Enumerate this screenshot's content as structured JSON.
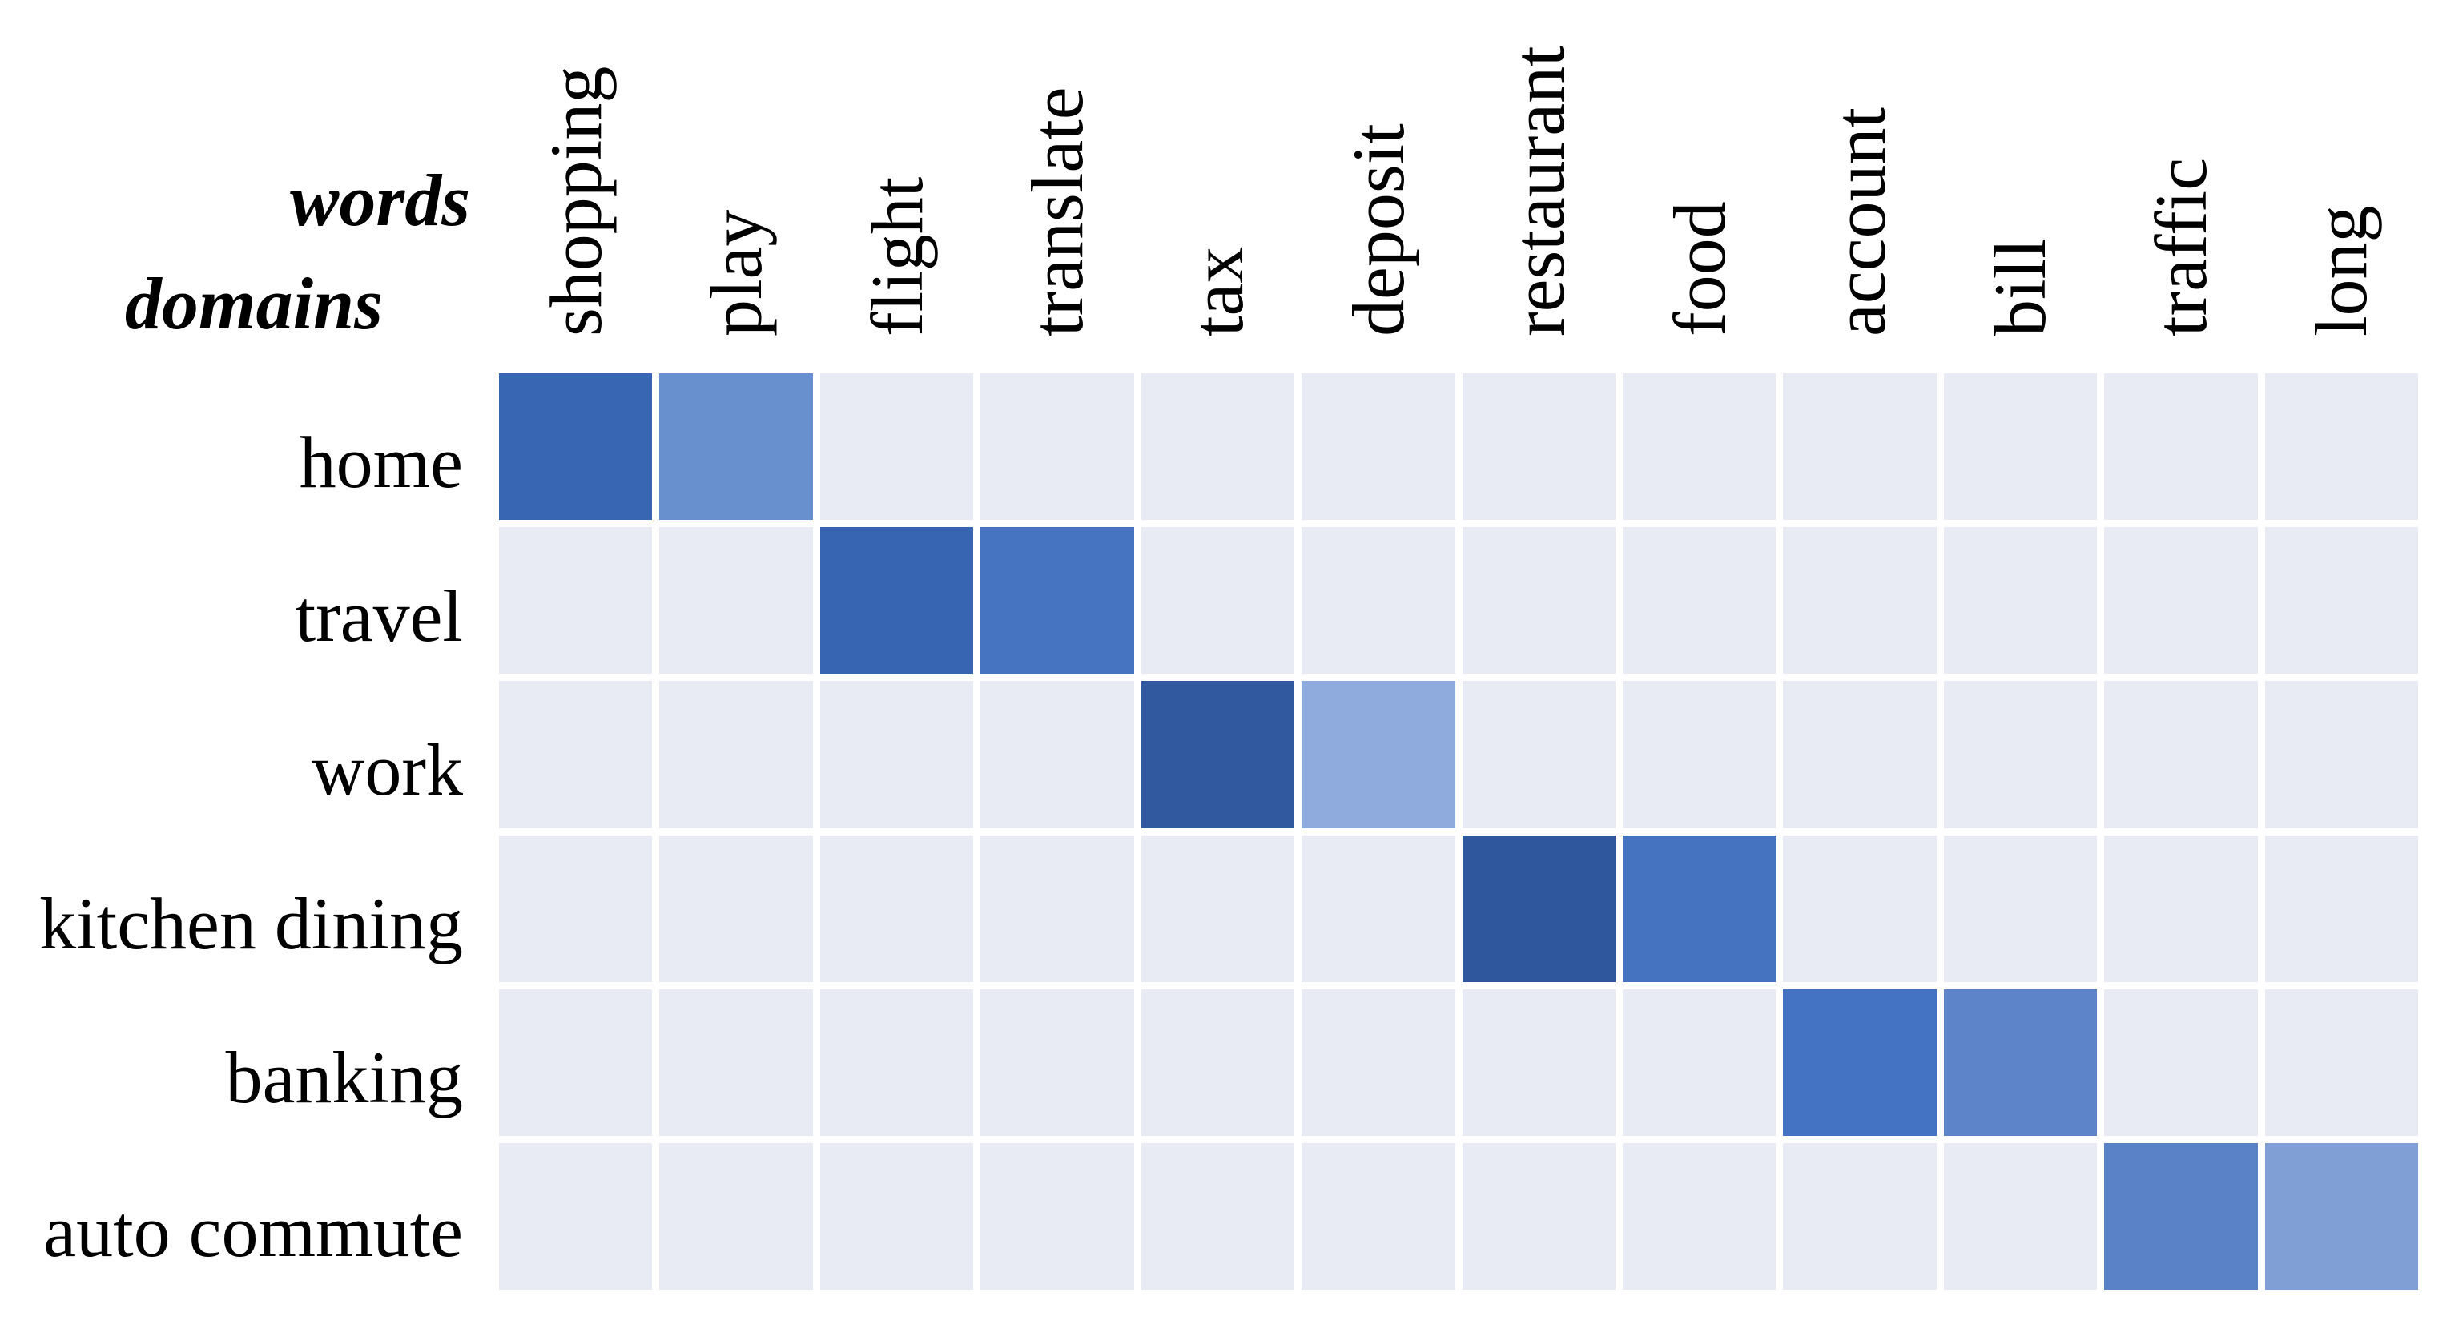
{
  "figure": {
    "corner": {
      "words_label": "words",
      "domains_label": "domains"
    }
  },
  "chart_data": {
    "type": "heatmap",
    "title": "",
    "x_axis_label": "words",
    "y_axis_label": "domains",
    "columns": [
      "shopping",
      "play",
      "flight",
      "translate",
      "tax",
      "deposit",
      "restaurant",
      "food",
      "account",
      "bill",
      "traffic",
      "long"
    ],
    "rows": [
      "home",
      "travel",
      "work",
      "kitchen dining",
      "banking",
      "auto commute"
    ],
    "values": [
      [
        0.72,
        0.45,
        0.04,
        0.04,
        0.04,
        0.04,
        0.04,
        0.04,
        0.04,
        0.04,
        0.04,
        0.04
      ],
      [
        0.04,
        0.04,
        0.72,
        0.62,
        0.04,
        0.04,
        0.04,
        0.04,
        0.04,
        0.04,
        0.04,
        0.04
      ],
      [
        0.04,
        0.04,
        0.04,
        0.04,
        0.8,
        0.28,
        0.04,
        0.04,
        0.04,
        0.04,
        0.04,
        0.04
      ],
      [
        0.04,
        0.04,
        0.04,
        0.04,
        0.04,
        0.04,
        0.82,
        0.62,
        0.04,
        0.04,
        0.04,
        0.04
      ],
      [
        0.04,
        0.04,
        0.04,
        0.04,
        0.04,
        0.04,
        0.04,
        0.04,
        0.6,
        0.5,
        0.04,
        0.04
      ],
      [
        0.04,
        0.04,
        0.04,
        0.04,
        0.04,
        0.04,
        0.04,
        0.04,
        0.04,
        0.04,
        0.5,
        0.34
      ]
    ],
    "highlighted_cells": [
      {
        "row": "home",
        "column": "shopping",
        "color": "#3866B3",
        "value": 0.72
      },
      {
        "row": "home",
        "column": "play",
        "color": "#688FCE",
        "value": 0.45
      },
      {
        "row": "travel",
        "column": "flight",
        "color": "#3765B2",
        "value": 0.72
      },
      {
        "row": "travel",
        "column": "translate",
        "color": "#4674C1",
        "value": 0.62
      },
      {
        "row": "work",
        "column": "tax",
        "color": "#30599F",
        "value": 0.8
      },
      {
        "row": "work",
        "column": "deposit",
        "color": "#8FAADC",
        "value": 0.28
      },
      {
        "row": "kitchen dining",
        "column": "restaurant",
        "color": "#2F579D",
        "value": 0.82
      },
      {
        "row": "kitchen dining",
        "column": "food",
        "color": "#4573C0",
        "value": 0.62
      },
      {
        "row": "banking",
        "column": "account",
        "color": "#4473C4",
        "value": 0.6
      },
      {
        "row": "banking",
        "column": "bill",
        "color": "#5D84C9",
        "value": 0.5
      },
      {
        "row": "auto commute",
        "column": "traffic",
        "color": "#5A83C7",
        "value": 0.5
      },
      {
        "row": "auto commute",
        "column": "long",
        "color": "#7F9FD5",
        "value": 0.34
      }
    ],
    "colors": {
      "background_cell": "#E8EBF4",
      "grid_gap": "#FFFFFF",
      "text": "#000000"
    },
    "layout": {
      "grid": true,
      "legend": "none",
      "column_labels_rotation_deg": 90,
      "column_count": 12,
      "row_count": 6
    }
  }
}
